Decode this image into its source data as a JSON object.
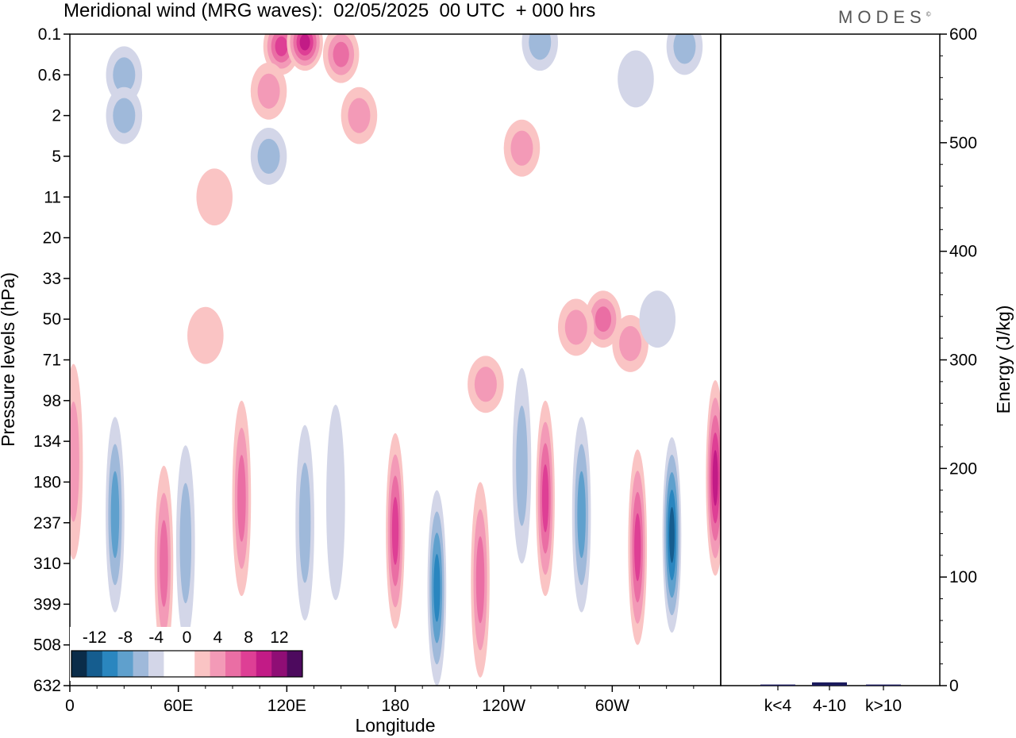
{
  "header": {
    "title": "Meridional wind (MRG waves):  02/05/2025  00 UTC  + 000 hrs",
    "logo": "MODES"
  },
  "chart_data": [
    {
      "type": "heatmap",
      "title": "Meridional wind (MRG waves):  02/05/2025  00 UTC  + 000 hrs",
      "xlabel": "Longitude",
      "ylabel": "Pressure levels (hPa)",
      "x_ticks": [
        {
          "lon": 0,
          "label": "0"
        },
        {
          "lon": 60,
          "label": "60E"
        },
        {
          "lon": 120,
          "label": "120E"
        },
        {
          "lon": 180,
          "label": "180"
        },
        {
          "lon": 240,
          "label": "120W"
        },
        {
          "lon": 300,
          "label": "60W"
        }
      ],
      "xlim": [
        0,
        360
      ],
      "y_levels": [
        "0.1",
        "0.6",
        "2",
        "5",
        "11",
        "20",
        "33",
        "50",
        "71",
        "98",
        "134",
        "180",
        "237",
        "310",
        "399",
        "508",
        "632"
      ],
      "colorbar": {
        "labels": [
          "-12",
          "-8",
          "-4",
          "0",
          "4",
          "8",
          "12"
        ],
        "colors": [
          "#0a2c49",
          "#155d8f",
          "#2a86bf",
          "#5fa0cd",
          "#9fb9da",
          "#d3d6e8",
          "#ffffff",
          "#ffffff",
          "#fac4c4",
          "#f39ab7",
          "#ea6ea4",
          "#de3f95",
          "#c21b86",
          "#8f0e75",
          "#4d0a5e"
        ]
      },
      "features": [
        {
          "lon": 117,
          "lev": 0.3,
          "v": 8
        },
        {
          "lon": 130,
          "lev": 0.2,
          "v": 10
        },
        {
          "lon": 150,
          "lev": 0.5,
          "v": 7
        },
        {
          "lon": 110,
          "lev": 1.4,
          "v": 5
        },
        {
          "lon": 160,
          "lev": 2.0,
          "v": 5
        },
        {
          "lon": 250,
          "lev": 2.8,
          "v": 5
        },
        {
          "lon": 30,
          "lev": 1.0,
          "v": -5
        },
        {
          "lon": 30,
          "lev": 2.0,
          "v": -4
        },
        {
          "lon": 260,
          "lev": 0.2,
          "v": -5
        },
        {
          "lon": 340,
          "lev": 0.3,
          "v": -4
        },
        {
          "lon": 313,
          "lev": 1.1,
          "v": -3
        },
        {
          "lon": 80,
          "lev": 4.0,
          "v": 3
        },
        {
          "lon": 110,
          "lev": 3.0,
          "v": -4
        },
        {
          "lon": 295,
          "lev": 7.0,
          "v": 6
        },
        {
          "lon": 310,
          "lev": 7.6,
          "v": 5
        },
        {
          "lon": 280,
          "lev": 7.2,
          "v": 4
        },
        {
          "lon": 325,
          "lev": 7.0,
          "v": -3
        },
        {
          "lon": 230,
          "lev": 8.6,
          "v": 5
        },
        {
          "lon": 75,
          "lev": 7.4,
          "v": 3
        },
        {
          "lon": 25,
          "lev": 11.8,
          "v": -7
        },
        {
          "lon": 52,
          "lev": 13.0,
          "v": 7
        },
        {
          "lon": 64,
          "lev": 12.5,
          "v": -5
        },
        {
          "lon": 95,
          "lev": 11.4,
          "v": 7
        },
        {
          "lon": 130,
          "lev": 12.0,
          "v": -4
        },
        {
          "lon": 147,
          "lev": 11.5,
          "v": -3
        },
        {
          "lon": 180,
          "lev": 12.2,
          "v": 8
        },
        {
          "lon": 203,
          "lev": 13.6,
          "v": -8
        },
        {
          "lon": 227,
          "lev": 13.4,
          "v": 7
        },
        {
          "lon": 263,
          "lev": 11.4,
          "v": 8
        },
        {
          "lon": 250,
          "lev": 10.6,
          "v": -5
        },
        {
          "lon": 283,
          "lev": 11.8,
          "v": -6
        },
        {
          "lon": 314,
          "lev": 12.6,
          "v": 9
        },
        {
          "lon": 333,
          "lev": 12.3,
          "v": -11
        },
        {
          "lon": 357,
          "lev": 10.9,
          "v": 10
        },
        {
          "lon": 2,
          "lev": 10.5,
          "v": 5
        }
      ]
    },
    {
      "type": "bar",
      "categories": [
        "k<4",
        "4-10",
        "k>10"
      ],
      "values": [
        1,
        3,
        1
      ],
      "ylabel": "Energy (J/kg)",
      "ylim": [
        0,
        600
      ],
      "yticks": [
        0,
        100,
        200,
        300,
        400,
        500,
        600
      ],
      "bar_color": "#1a1a5c"
    }
  ]
}
